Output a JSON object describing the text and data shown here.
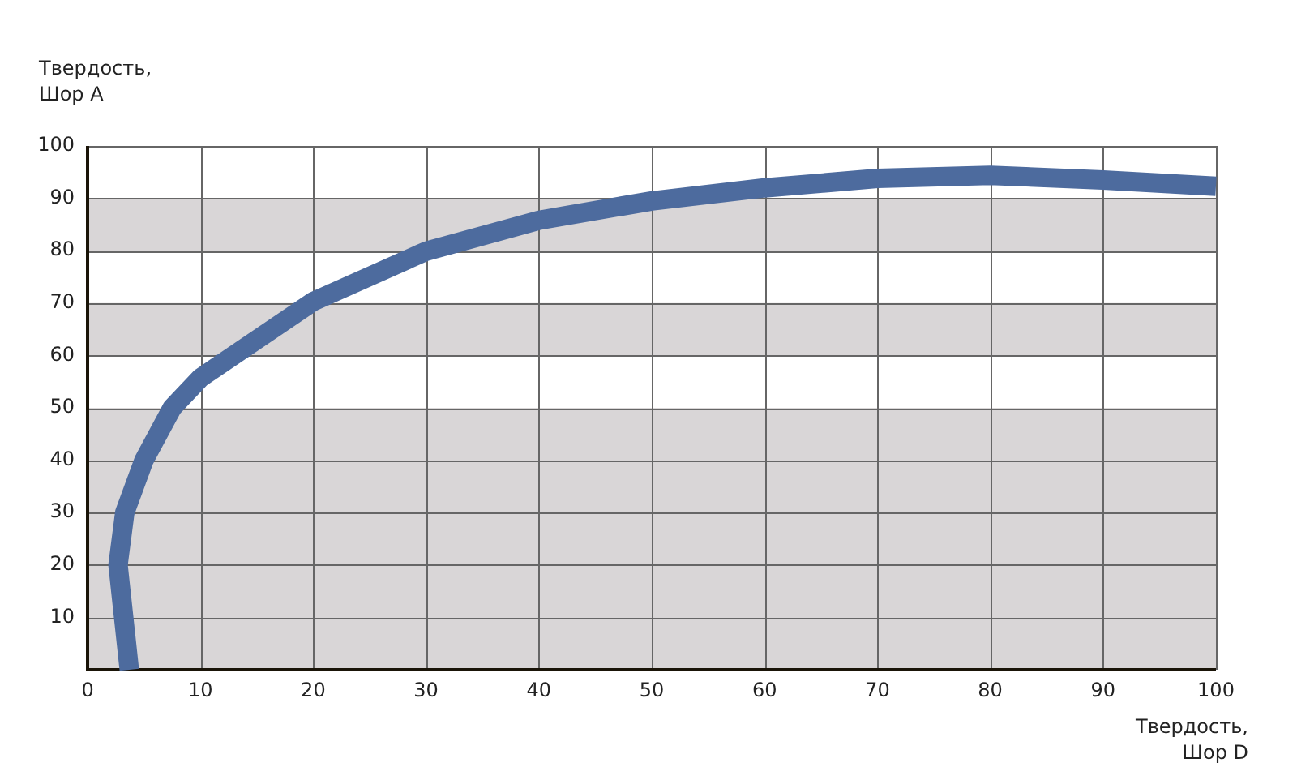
{
  "chart_data": {
    "type": "line",
    "xlabel": "Твердость,\nШор D",
    "ylabel": "Твердость,\nШор A",
    "series": [
      {
        "color": "#4d6b9e",
        "x": [
          3.7,
          3.2,
          2.7,
          3.3,
          5.0,
          7.5,
          10,
          20,
          30,
          40,
          50,
          60,
          70,
          80,
          90,
          100
        ],
        "values": [
          0,
          10,
          20,
          30,
          40,
          50,
          55.7,
          70.3,
          79.9,
          85.8,
          89.5,
          92,
          93.8,
          94.4,
          93.5,
          92.3
        ]
      }
    ],
    "xlim": [
      0,
      100
    ],
    "ylim": [
      0,
      100
    ],
    "xticks": [
      0,
      10,
      20,
      30,
      40,
      50,
      60,
      70,
      80,
      90,
      100
    ],
    "yticks": [
      {
        "value": 0,
        "label": null
      },
      10,
      20,
      30,
      40,
      50,
      60,
      70,
      80,
      90,
      100
    ],
    "grid": true,
    "marker": "none",
    "line_style": "solid",
    "legend": false,
    "bands": [
      {
        "axis": "y",
        "from": 0,
        "to": 50,
        "color": "#d9d6d7"
      },
      {
        "axis": "y",
        "from": 60,
        "to": 70,
        "color": "#d9d6d7"
      },
      {
        "axis": "y",
        "from": 80,
        "to": 90,
        "color": "#d9d6d7"
      }
    ]
  }
}
